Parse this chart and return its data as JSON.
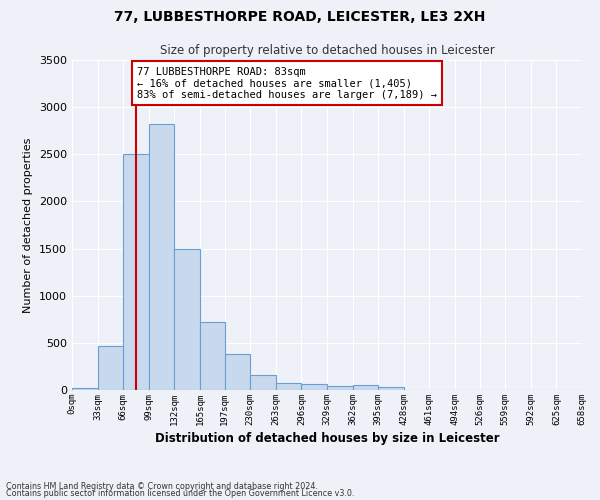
{
  "title_line1": "77, LUBBESTHORPE ROAD, LEICESTER, LE3 2XH",
  "title_line2": "Size of property relative to detached houses in Leicester",
  "xlabel": "Distribution of detached houses by size in Leicester",
  "ylabel": "Number of detached properties",
  "bar_color": "#c8d9ee",
  "bar_edge_color": "#6a9fd4",
  "background_color": "#eef2f8",
  "grid_color": "#ffffff",
  "bin_edges": [
    0,
    33,
    66,
    99,
    132,
    165,
    197,
    230,
    263,
    296,
    329,
    362,
    395,
    428,
    461,
    494,
    526,
    559,
    592,
    625,
    658
  ],
  "bin_labels": [
    "0sqm",
    "33sqm",
    "66sqm",
    "99sqm",
    "132sqm",
    "165sqm",
    "197sqm",
    "230sqm",
    "263sqm",
    "296sqm",
    "329sqm",
    "362sqm",
    "395sqm",
    "428sqm",
    "461sqm",
    "494sqm",
    "526sqm",
    "559sqm",
    "592sqm",
    "625sqm",
    "658sqm"
  ],
  "values": [
    20,
    470,
    2500,
    2820,
    1500,
    720,
    380,
    155,
    70,
    60,
    45,
    55,
    30,
    0,
    0,
    0,
    0,
    0,
    0,
    0
  ],
  "redline_x": 83,
  "annotation_text": "77 LUBBESTHORPE ROAD: 83sqm\n← 16% of detached houses are smaller (1,405)\n83% of semi-detached houses are larger (7,189) →",
  "annotation_box_color": "#ffffff",
  "annotation_border_color": "#cc0000",
  "redline_color": "#cc0000",
  "ylim": [
    0,
    3500
  ],
  "yticks": [
    0,
    500,
    1000,
    1500,
    2000,
    2500,
    3000,
    3500
  ],
  "footer_line1": "Contains HM Land Registry data © Crown copyright and database right 2024.",
  "footer_line2": "Contains public sector information licensed under the Open Government Licence v3.0."
}
